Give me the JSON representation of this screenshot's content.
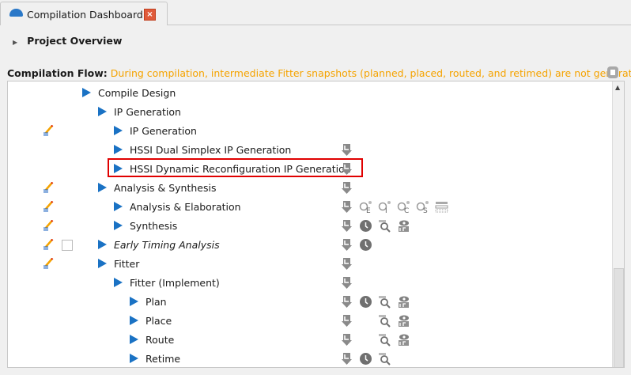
{
  "tab": {
    "title": "Compilation Dashboard",
    "icon": "gauge-icon",
    "close_icon": "close-icon"
  },
  "project_overview": {
    "label": "Project Overview"
  },
  "flow": {
    "label": "Compilation Flow:",
    "message": "During compilation, intermediate Fitter snapshots (planned, placed, routed, and retimed) are not generated.",
    "message_color": "#f5a300"
  },
  "rows": [
    {
      "label": "Compile Design",
      "level": 0,
      "edit": false,
      "icons": []
    },
    {
      "label": "IP Generation",
      "level": 1,
      "edit": false,
      "icons": []
    },
    {
      "label": "IP Generation",
      "level": 2,
      "edit": true,
      "icons": []
    },
    {
      "label": "HSSI Dual Simplex IP Generation",
      "level": 2,
      "edit": false,
      "icons": [
        "report"
      ]
    },
    {
      "label": "HSSI Dynamic Reconfiguration IP Generation",
      "level": 2,
      "edit": false,
      "icons": [
        "report"
      ],
      "highlighted": true
    },
    {
      "label": "Analysis & Synthesis",
      "level": 1,
      "edit": true,
      "icons": [
        "report"
      ]
    },
    {
      "label": "Analysis & Elaboration",
      "level": 2,
      "edit": true,
      "icons": [
        "report",
        "E",
        "I",
        "C",
        "S",
        "netlist"
      ]
    },
    {
      "label": "Synthesis",
      "level": 2,
      "edit": true,
      "icons": [
        "report",
        "clock",
        "magnify",
        "eye"
      ]
    },
    {
      "label": "Early Timing Analysis",
      "level": 1,
      "edit": true,
      "checkbox": true,
      "italic": true,
      "icons": [
        "report",
        "clock"
      ]
    },
    {
      "label": "Fitter",
      "level": 1,
      "edit": true,
      "icons": [
        "report"
      ]
    },
    {
      "label": "Fitter (Implement)",
      "level": 2,
      "edit": false,
      "icons": [
        "report"
      ]
    },
    {
      "label": "Plan",
      "level": 3,
      "edit": false,
      "icons": [
        "report",
        "clock",
        "magnify",
        "eye"
      ]
    },
    {
      "label": "Place",
      "level": 3,
      "edit": false,
      "icons": [
        "report",
        "",
        "magnify",
        "eye"
      ]
    },
    {
      "label": "Route",
      "level": 3,
      "edit": false,
      "icons": [
        "report",
        "",
        "magnify",
        "eye"
      ]
    },
    {
      "label": "Retime",
      "level": 3,
      "edit": false,
      "icons": [
        "report",
        "clock",
        "magnify"
      ]
    }
  ]
}
